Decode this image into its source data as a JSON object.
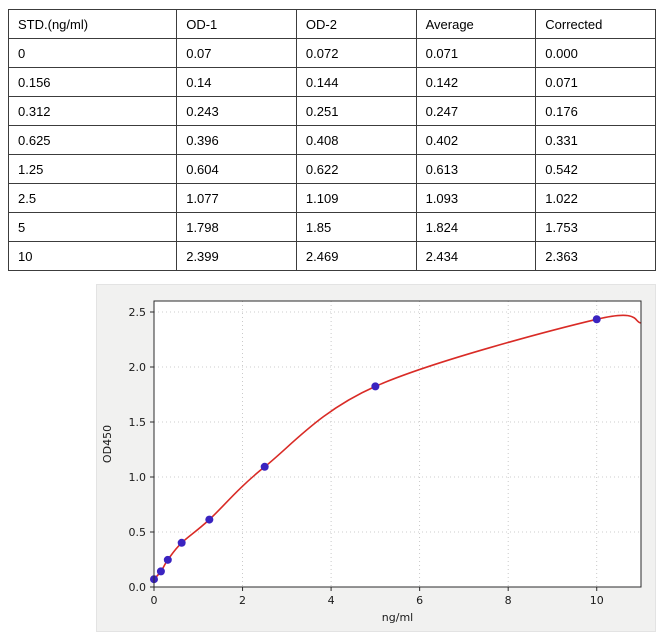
{
  "table": {
    "columns": [
      "STD.(ng/ml)",
      "OD-1",
      "OD-2",
      "Average",
      "Corrected"
    ],
    "rows": [
      [
        "0",
        "0.07",
        "0.072",
        "0.071",
        "0.000"
      ],
      [
        "0.156",
        "0.14",
        "0.144",
        "0.142",
        "0.071"
      ],
      [
        "0.312",
        "0.243",
        "0.251",
        "0.247",
        "0.176"
      ],
      [
        "0.625",
        "0.396",
        "0.408",
        "0.402",
        "0.331"
      ],
      [
        "1.25",
        "0.604",
        "0.622",
        "0.613",
        "0.542"
      ],
      [
        "2.5",
        "1.077",
        "1.109",
        "1.093",
        "1.022"
      ],
      [
        "5",
        "1.798",
        "1.85",
        "1.824",
        "1.753"
      ],
      [
        "10",
        "2.399",
        "2.469",
        "2.434",
        "2.363"
      ]
    ]
  },
  "chart_data": {
    "type": "scatter",
    "x": [
      0,
      0.156,
      0.312,
      0.625,
      1.25,
      2.5,
      5,
      10
    ],
    "y": [
      0.071,
      0.142,
      0.247,
      0.402,
      0.613,
      1.093,
      1.824,
      2.434
    ],
    "title": "",
    "xlabel": "ng/ml",
    "ylabel": "OD450",
    "xlim": [
      0,
      11
    ],
    "ylim": [
      0,
      2.6
    ],
    "xticks": [
      0,
      2,
      4,
      6,
      8,
      10
    ],
    "yticks": [
      0,
      0.5,
      1.0,
      1.5,
      2.0,
      2.5
    ],
    "grid": "dotted",
    "legend": "none",
    "fit_curve": "smooth 4PL-like fit through the standard points",
    "curve_end": {
      "x": 11,
      "y": 2.4
    },
    "point_color": "#3a23c0",
    "curve_color": "#d92b26",
    "plot_bg": "#ffffff",
    "figure_bg": "#f1f1f0",
    "grid_color": "#bdbdbd",
    "axis_color": "#2b2b2b"
  }
}
